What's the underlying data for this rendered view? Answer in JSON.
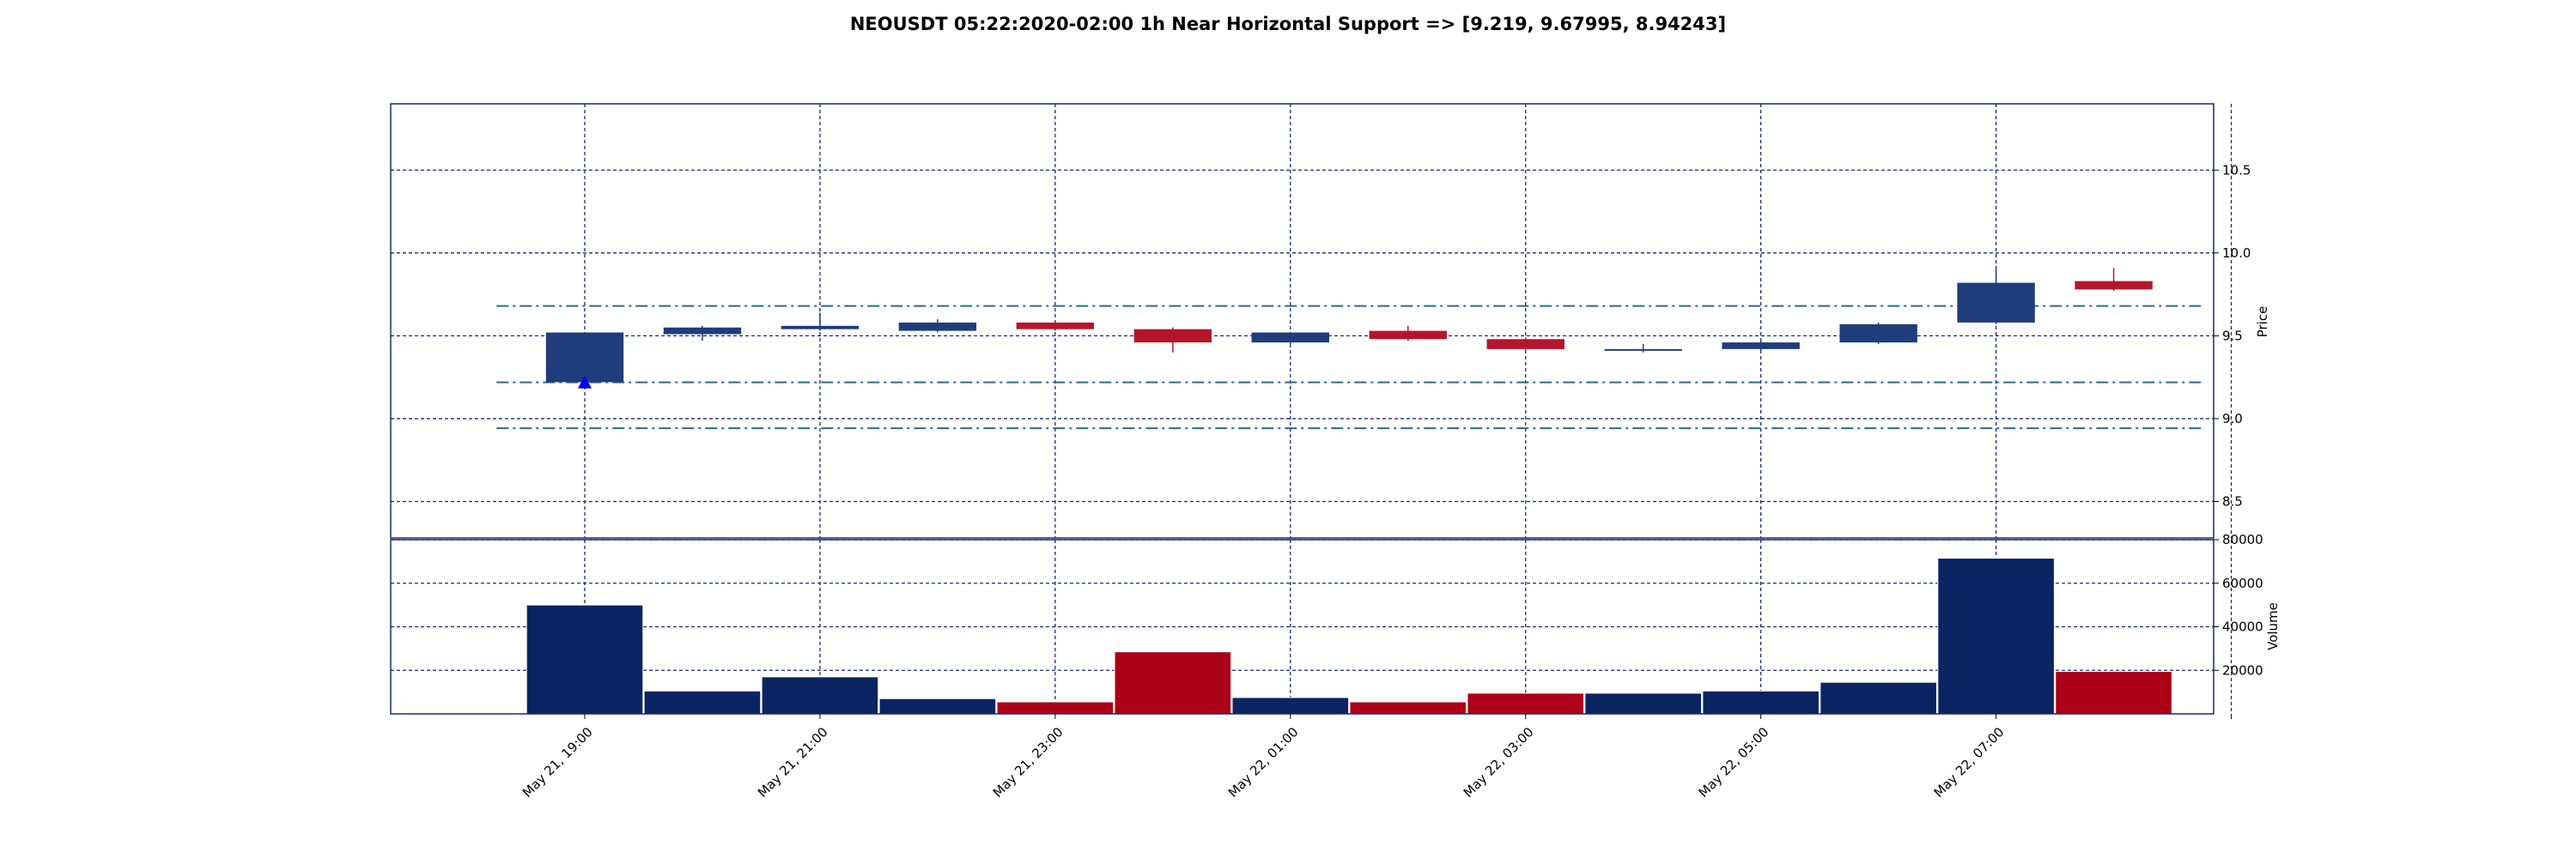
{
  "chart_data": {
    "type": "candlestick",
    "title": "NEOUSDT 05:22:2020-02:00 1h Near Horizontal Support => [9.219, 9.67995, 8.94243]",
    "colors": {
      "up_body": "#1f3d7a",
      "down_body": "#b5152b",
      "up_volume": "#0b2462",
      "down_volume": "#ac0018",
      "grid": "#1a2a6c",
      "support_line": "#2b6a8c",
      "marker": "#0000ff"
    },
    "price_panel": {
      "ylabel": "Price",
      "ylim": [
        8.28,
        10.9
      ],
      "yticks": [
        "8.5",
        "9.0",
        "9.5",
        "10.0",
        "10.5"
      ],
      "ytick_values": [
        8.5,
        9.0,
        9.5,
        10.0,
        10.5
      ],
      "support_levels": [
        9.219,
        9.67995,
        8.94243
      ]
    },
    "volume_panel": {
      "ylabel": "Volume",
      "ylim": [
        0,
        80000
      ],
      "yticks": [
        "20000",
        "40000",
        "60000",
        "80000"
      ],
      "ytick_values": [
        20000,
        40000,
        60000,
        80000
      ]
    },
    "x_index_range": [
      -1.65,
      13.85
    ],
    "xticks": [
      {
        "index": 0,
        "label": "May 21, 19:00"
      },
      {
        "index": 2,
        "label": "May 21, 21:00"
      },
      {
        "index": 4,
        "label": "May 21, 23:00"
      },
      {
        "index": 6,
        "label": "May 22, 01:00"
      },
      {
        "index": 8,
        "label": "May 22, 03:00"
      },
      {
        "index": 10,
        "label": "May 22, 05:00"
      },
      {
        "index": 12,
        "label": "May 22, 07:00"
      },
      {
        "index": 14,
        "label": ""
      }
    ],
    "candles": [
      {
        "open": 9.22,
        "high": 9.52,
        "low": 9.21,
        "close": 9.52,
        "volume": 50000
      },
      {
        "open": 9.51,
        "high": 9.56,
        "low": 9.47,
        "close": 9.55,
        "volume": 10500
      },
      {
        "open": 9.54,
        "high": 9.64,
        "low": 9.53,
        "close": 9.56,
        "volume": 17000
      },
      {
        "open": 9.53,
        "high": 9.6,
        "low": 9.52,
        "close": 9.58,
        "volume": 7000
      },
      {
        "open": 9.58,
        "high": 9.59,
        "low": 9.53,
        "close": 9.54,
        "volume": 5500
      },
      {
        "open": 9.54,
        "high": 9.55,
        "low": 9.4,
        "close": 9.46,
        "volume": 28500
      },
      {
        "open": 9.46,
        "high": 9.52,
        "low": 9.45,
        "close": 9.52,
        "volume": 7500
      },
      {
        "open": 9.53,
        "high": 9.56,
        "low": 9.47,
        "close": 9.48,
        "volume": 5500
      },
      {
        "open": 9.48,
        "high": 9.49,
        "low": 9.41,
        "close": 9.42,
        "volume": 9500
      },
      {
        "open": 9.41,
        "high": 9.45,
        "low": 9.4,
        "close": 9.42,
        "volume": 9500
      },
      {
        "open": 9.42,
        "high": 9.47,
        "low": 9.41,
        "close": 9.46,
        "volume": 10500
      },
      {
        "open": 9.46,
        "high": 9.58,
        "low": 9.45,
        "close": 9.57,
        "volume": 14500
      },
      {
        "open": 9.58,
        "high": 9.91,
        "low": 9.57,
        "close": 9.82,
        "volume": 71500
      },
      {
        "open": 9.83,
        "high": 9.91,
        "low": 9.77,
        "close": 9.78,
        "volume": 19500
      }
    ],
    "marker": {
      "index": 0,
      "price": 9.219,
      "shape": "triangle-up"
    }
  }
}
